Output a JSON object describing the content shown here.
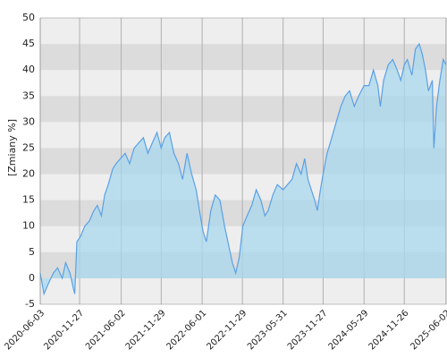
{
  "chart_data": {
    "type": "area",
    "ylabel": "[Zmiany %]",
    "x": [
      "2020-06-03",
      "2020-06-20",
      "2020-07-10",
      "2020-08-01",
      "2020-08-20",
      "2020-09-10",
      "2020-09-25",
      "2020-10-15",
      "2020-10-30",
      "2020-11-05",
      "2020-11-15",
      "2020-12-01",
      "2020-12-20",
      "2021-01-10",
      "2021-01-30",
      "2021-02-15",
      "2021-03-05",
      "2021-03-20",
      "2021-04-05",
      "2021-04-25",
      "2021-05-10",
      "2021-05-30",
      "2021-06-20",
      "2021-07-10",
      "2021-07-30",
      "2021-08-20",
      "2021-09-10",
      "2021-09-30",
      "2021-10-20",
      "2021-11-10",
      "2021-11-29",
      "2021-12-15",
      "2022-01-05",
      "2022-01-25",
      "2022-02-15",
      "2022-03-05",
      "2022-03-25",
      "2022-04-15",
      "2022-05-05",
      "2022-05-20",
      "2022-06-05",
      "2022-06-20",
      "2022-07-10",
      "2022-07-30",
      "2022-08-20",
      "2022-09-10",
      "2022-09-30",
      "2022-10-15",
      "2022-10-30",
      "2022-11-15",
      "2022-12-01",
      "2022-12-20",
      "2023-01-10",
      "2023-01-30",
      "2023-02-20",
      "2023-03-10",
      "2023-03-25",
      "2023-04-15",
      "2023-05-05",
      "2023-05-31",
      "2023-06-20",
      "2023-07-10",
      "2023-07-30",
      "2023-08-20",
      "2023-09-05",
      "2023-09-20",
      "2023-10-05",
      "2023-10-20",
      "2023-11-01",
      "2023-11-15",
      "2023-11-27",
      "2023-12-15",
      "2024-01-05",
      "2024-01-25",
      "2024-02-15",
      "2024-03-05",
      "2024-03-25",
      "2024-04-15",
      "2024-05-05",
      "2024-05-29",
      "2024-06-20",
      "2024-07-10",
      "2024-07-30",
      "2024-08-10",
      "2024-08-25",
      "2024-09-15",
      "2024-10-05",
      "2024-10-25",
      "2024-11-10",
      "2024-11-26",
      "2024-12-10",
      "2024-12-30",
      "2025-01-15",
      "2025-02-01",
      "2025-02-15",
      "2025-03-01",
      "2025-03-15",
      "2025-04-01",
      "2025-04-08",
      "2025-04-20",
      "2025-05-05",
      "2025-05-20",
      "2025-06-02"
    ],
    "values": [
      1,
      -3,
      -1,
      1,
      2,
      0,
      3,
      1,
      -2,
      -3,
      7,
      8,
      10,
      11,
      13,
      14,
      12,
      16,
      18,
      21,
      22,
      23,
      24,
      22,
      25,
      26,
      27,
      24,
      26,
      28,
      25,
      27,
      28,
      24,
      22,
      19,
      24,
      20,
      17,
      13,
      9,
      7,
      13,
      16,
      15,
      10,
      6,
      3,
      1,
      4,
      10,
      12,
      14,
      17,
      15,
      12,
      13,
      16,
      18,
      17,
      18,
      19,
      22,
      20,
      23,
      19,
      17,
      15,
      13,
      17,
      20,
      24,
      27,
      30,
      33,
      35,
      36,
      33,
      35,
      37,
      37,
      40,
      37,
      33,
      38,
      41,
      42,
      40,
      38,
      41,
      42,
      39,
      44,
      45,
      43,
      40,
      36,
      38,
      25,
      33,
      38,
      42,
      41
    ],
    "color": "#5aa0e6",
    "fill": "#a8d8ee",
    "xlim": [
      "2020-06-03",
      "2025-06-02"
    ],
    "xticks": [
      "2020-06-03",
      "2020-11-27",
      "2021-06-02",
      "2021-11-29",
      "2022-06-01",
      "2022-11-29",
      "2023-05-31",
      "2023-11-27",
      "2024-05-29",
      "2024-11-26",
      "2025-06-02"
    ],
    "ylim": [
      -5,
      50
    ],
    "yticks": [
      -5,
      0,
      5,
      10,
      15,
      20,
      25,
      30,
      35,
      40,
      45,
      50
    ],
    "grid": true
  }
}
